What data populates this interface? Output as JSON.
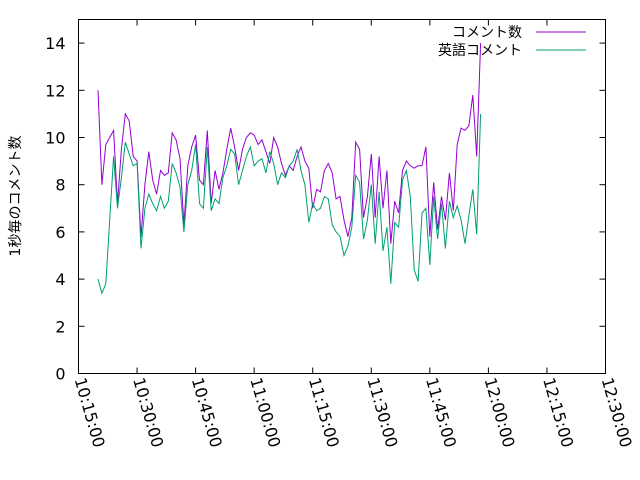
{
  "chart_data": {
    "type": "line",
    "title": "",
    "xlabel": "",
    "ylabel": "1秒毎のコメント数",
    "ylim": [
      0,
      15
    ],
    "yticks": [
      0,
      2,
      4,
      6,
      8,
      10,
      12,
      14
    ],
    "xlim": [
      "10:15:00",
      "12:30:00"
    ],
    "xticks": [
      "10:15:00",
      "10:30:00",
      "10:45:00",
      "11:00:00",
      "11:15:00",
      "11:30:00",
      "11:45:00",
      "12:00:00",
      "12:15:00",
      "12:30:00"
    ],
    "x_tick_rotation": "vertical",
    "grid": false,
    "legend_position": "top-right",
    "x_start": "10:20:00",
    "x_step_seconds": 60,
    "series": [
      {
        "name": "コメント数",
        "color": "#9400d3",
        "values": [
          12.0,
          8.0,
          9.7,
          10.0,
          10.3,
          7.2,
          9.5,
          11.0,
          10.7,
          9.2,
          9.0,
          5.8,
          8.0,
          9.4,
          8.2,
          7.6,
          8.6,
          8.4,
          8.5,
          10.2,
          9.9,
          9.1,
          6.3,
          8.8,
          9.6,
          10.1,
          8.2,
          8.0,
          10.3,
          7.2,
          8.6,
          7.8,
          8.5,
          9.5,
          10.4,
          9.6,
          8.6,
          9.5,
          10.0,
          10.2,
          10.1,
          9.7,
          9.9,
          9.4,
          8.9,
          10.0,
          9.6,
          8.9,
          8.4,
          8.8,
          8.6,
          9.2,
          9.6,
          9.0,
          8.7,
          7.0,
          7.8,
          7.7,
          8.6,
          8.9,
          8.5,
          7.4,
          7.5,
          6.5,
          5.8,
          6.6,
          9.8,
          9.5,
          6.6,
          7.5,
          9.3,
          6.6,
          9.2,
          7.0,
          8.6,
          5.5,
          7.3,
          6.8,
          8.6,
          9.0,
          8.8,
          8.7,
          8.8,
          8.8,
          9.6,
          5.8,
          8.1,
          6.1,
          7.5,
          6.5,
          8.5,
          6.9,
          9.7,
          10.4,
          10.3,
          10.5,
          11.8,
          9.2,
          14.0
        ]
      },
      {
        "name": "英語コメント",
        "color": "#009e73",
        "values": [
          4.0,
          3.4,
          3.8,
          6.5,
          9.2,
          7.0,
          8.3,
          9.8,
          9.3,
          8.8,
          8.9,
          5.3,
          7.0,
          7.6,
          7.2,
          6.9,
          7.5,
          7.0,
          7.3,
          8.9,
          8.5,
          7.9,
          6.0,
          8.0,
          8.6,
          9.7,
          7.2,
          7.0,
          9.6,
          6.9,
          7.4,
          7.2,
          8.3,
          8.8,
          9.5,
          9.3,
          8.0,
          8.6,
          9.2,
          9.6,
          8.8,
          9.0,
          9.1,
          8.5,
          9.4,
          8.9,
          8.0,
          8.5,
          8.3,
          8.8,
          9.0,
          9.5,
          8.6,
          8.0,
          6.4,
          7.2,
          6.9,
          7.0,
          7.5,
          7.4,
          6.3,
          6.0,
          5.8,
          5.0,
          5.4,
          6.2,
          8.4,
          8.1,
          5.7,
          6.5,
          8.0,
          5.5,
          7.7,
          5.2,
          6.2,
          3.8,
          6.4,
          6.2,
          8.2,
          8.6,
          7.5,
          4.4,
          3.9,
          6.8,
          7.0,
          4.6,
          7.5,
          5.7,
          7.2,
          5.3,
          7.3,
          6.6,
          7.1,
          6.5,
          5.5,
          6.7,
          7.8,
          5.9,
          11.0
        ]
      }
    ]
  }
}
